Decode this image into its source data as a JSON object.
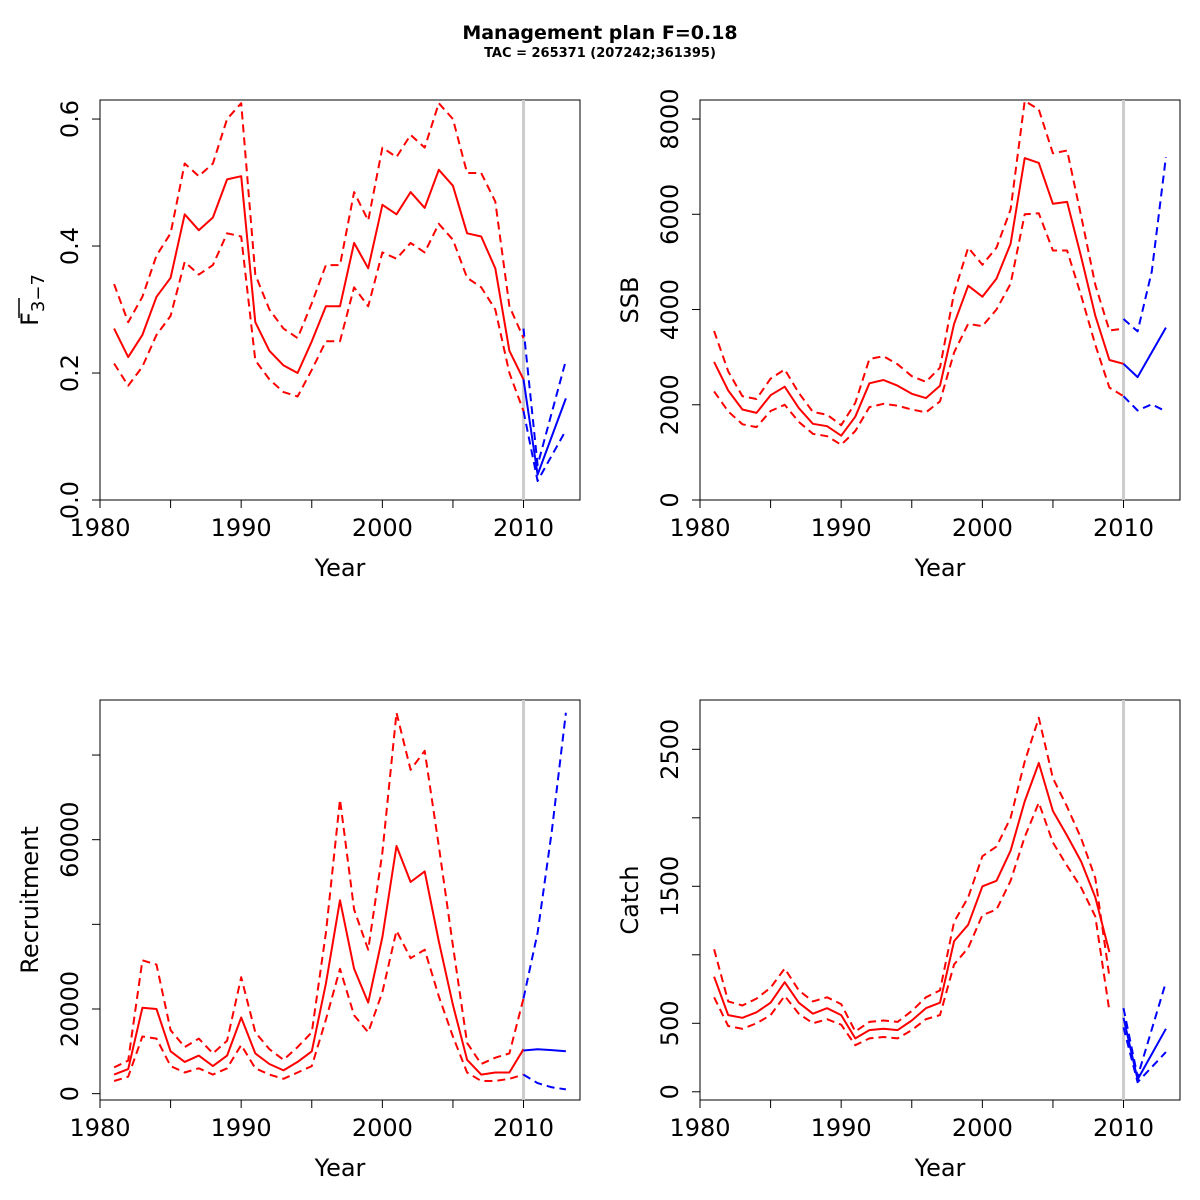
{
  "title": "Management plan F=0.18",
  "subtitle": "TAC = 265371 (207242;361395)",
  "colors": {
    "historic": "#ff0000",
    "forecast": "#0000ff",
    "vline": "#cccccc"
  },
  "chart_data": [
    {
      "type": "line",
      "ylabel_main": "F",
      "ylabel_sub": "3−7",
      "xlabel": "Year",
      "xlim": [
        1980,
        2014
      ],
      "ylim": [
        0,
        0.63
      ],
      "xticks": [
        1980,
        1990,
        2000,
        2010
      ],
      "yticks": [
        0.0,
        0.2,
        0.4,
        0.6
      ],
      "ytick_labels": [
        "0.0",
        "0.2",
        "0.4",
        "0.6"
      ],
      "vline_x": 2010,
      "series": [
        {
          "style": "historic-solid",
          "x": [
            1981,
            1982,
            1983,
            1984,
            1985,
            1986,
            1987,
            1988,
            1989,
            1990,
            1991,
            1992,
            1993,
            1994,
            1995,
            1996,
            1997,
            1998,
            1999,
            2000,
            2001,
            2002,
            2003,
            2004,
            2005,
            2006,
            2007,
            2008,
            2009,
            2010
          ],
          "y": [
            0.27,
            0.225,
            0.26,
            0.32,
            0.35,
            0.45,
            0.425,
            0.445,
            0.505,
            0.51,
            0.28,
            0.235,
            0.212,
            0.2,
            0.25,
            0.305,
            0.305,
            0.405,
            0.365,
            0.465,
            0.45,
            0.485,
            0.46,
            0.52,
            0.495,
            0.42,
            0.415,
            0.365,
            0.235,
            0.19
          ]
        },
        {
          "style": "historic-dash",
          "x": [
            1981,
            1982,
            1983,
            1984,
            1985,
            1986,
            1987,
            1988,
            1989,
            1990,
            1991,
            1992,
            1993,
            1994,
            1995,
            1996,
            1997,
            1998,
            1999,
            2000,
            2001,
            2002,
            2003,
            2004,
            2005,
            2006,
            2007,
            2008,
            2009,
            2010
          ],
          "y": [
            0.34,
            0.28,
            0.32,
            0.385,
            0.42,
            0.53,
            0.51,
            0.53,
            0.6,
            0.625,
            0.355,
            0.3,
            0.27,
            0.255,
            0.31,
            0.37,
            0.37,
            0.485,
            0.44,
            0.555,
            0.54,
            0.575,
            0.555,
            0.625,
            0.6,
            0.515,
            0.515,
            0.47,
            0.305,
            0.255
          ]
        },
        {
          "style": "historic-dash",
          "x": [
            1981,
            1982,
            1983,
            1984,
            1985,
            1986,
            1987,
            1988,
            1989,
            1990,
            1991,
            1992,
            1993,
            1994,
            1995,
            1996,
            1997,
            1998,
            1999,
            2000,
            2001,
            2002,
            2003,
            2004,
            2005,
            2006,
            2007,
            2008,
            2009,
            2010
          ],
          "y": [
            0.215,
            0.18,
            0.21,
            0.26,
            0.29,
            0.375,
            0.355,
            0.37,
            0.42,
            0.415,
            0.22,
            0.19,
            0.17,
            0.163,
            0.205,
            0.25,
            0.25,
            0.335,
            0.305,
            0.39,
            0.38,
            0.405,
            0.39,
            0.435,
            0.41,
            0.35,
            0.335,
            0.3,
            0.2,
            0.14
          ]
        },
        {
          "style": "forecast-solid",
          "x": [
            2010,
            2011,
            2013
          ],
          "y": [
            0.19,
            0.04,
            0.16
          ]
        },
        {
          "style": "forecast-dash",
          "x": [
            2010,
            2011,
            2013
          ],
          "y": [
            0.27,
            0.055,
            0.22
          ]
        },
        {
          "style": "forecast-dash",
          "x": [
            2010,
            2011,
            2013
          ],
          "y": [
            0.14,
            0.03,
            0.11
          ]
        }
      ]
    },
    {
      "type": "line",
      "ylabel_main": "SSB",
      "xlabel": "Year",
      "xlim": [
        1980,
        2014
      ],
      "ylim": [
        0,
        8400
      ],
      "xticks": [
        1980,
        1990,
        2000,
        2010
      ],
      "yticks": [
        0,
        2000,
        4000,
        6000,
        8000
      ],
      "ytick_labels": [
        "0",
        "2000",
        "4000",
        "6000",
        "8000"
      ],
      "vline_x": 2010,
      "series": [
        {
          "style": "historic-solid",
          "x": [
            1981,
            1982,
            1983,
            1984,
            1985,
            1986,
            1987,
            1988,
            1989,
            1990,
            1991,
            1992,
            1993,
            1994,
            1995,
            1996,
            1997,
            1998,
            1999,
            2000,
            2001,
            2002,
            2003,
            2004,
            2005,
            2006,
            2007,
            2008,
            2009,
            2010
          ],
          "y": [
            2900,
            2300,
            1900,
            1830,
            2200,
            2380,
            1930,
            1600,
            1550,
            1350,
            1750,
            2450,
            2520,
            2400,
            2230,
            2140,
            2400,
            3700,
            4500,
            4270,
            4650,
            5380,
            7180,
            7080,
            6220,
            6260,
            5100,
            3870,
            2940,
            2860
          ]
        },
        {
          "style": "historic-dash",
          "x": [
            1981,
            1982,
            1983,
            1984,
            1985,
            1986,
            1987,
            1988,
            1989,
            1990,
            1991,
            1992,
            1993,
            1994,
            1995,
            1996,
            1997,
            1998,
            1999,
            2000,
            2001,
            2002,
            2003,
            2004,
            2005,
            2006,
            2007,
            2008,
            2009,
            2010
          ],
          "y": [
            3550,
            2700,
            2180,
            2120,
            2550,
            2740,
            2250,
            1850,
            1790,
            1570,
            2040,
            2960,
            3020,
            2850,
            2600,
            2480,
            2780,
            4350,
            5300,
            4940,
            5300,
            6100,
            8380,
            8200,
            7280,
            7340,
            5960,
            4520,
            3560,
            3600
          ]
        },
        {
          "style": "historic-dash",
          "x": [
            1981,
            1982,
            1983,
            1984,
            1985,
            1986,
            1987,
            1988,
            1989,
            1990,
            1991,
            1992,
            1993,
            1994,
            1995,
            1996,
            1997,
            1998,
            1999,
            2000,
            2001,
            2002,
            2003,
            2004,
            2005,
            2006,
            2007,
            2008,
            2009,
            2010
          ],
          "y": [
            2280,
            1860,
            1590,
            1530,
            1870,
            2000,
            1640,
            1390,
            1340,
            1160,
            1450,
            1950,
            2020,
            1980,
            1900,
            1840,
            2070,
            3100,
            3700,
            3650,
            4000,
            4540,
            6000,
            6020,
            5240,
            5240,
            4290,
            3260,
            2360,
            2180
          ]
        },
        {
          "style": "forecast-solid",
          "x": [
            2010,
            2011,
            2013
          ],
          "y": [
            2860,
            2580,
            3620
          ]
        },
        {
          "style": "forecast-dash",
          "x": [
            2010,
            2011,
            2012,
            2013
          ],
          "y": [
            3800,
            3540,
            4800,
            7200
          ]
        },
        {
          "style": "forecast-dash",
          "x": [
            2010,
            2011,
            2012,
            2013
          ],
          "y": [
            2180,
            1880,
            2010,
            1860
          ]
        }
      ]
    },
    {
      "type": "line",
      "ylabel_main": "Recruitment",
      "xlabel": "Year",
      "xlim": [
        1980,
        2014
      ],
      "ylim": [
        -1500,
        93000
      ],
      "xticks": [
        1980,
        1990,
        2000,
        2010
      ],
      "yticks": [
        0,
        20000,
        40000,
        60000,
        80000
      ],
      "ytick_labels": [
        "0",
        "20000",
        "",
        "60000",
        ""
      ],
      "vline_x": 2010,
      "series": [
        {
          "style": "historic-solid",
          "x": [
            1981,
            1982,
            1983,
            1984,
            1985,
            1986,
            1987,
            1988,
            1989,
            1990,
            1991,
            1992,
            1993,
            1994,
            1995,
            1996,
            1997,
            1998,
            1999,
            2000,
            2001,
            2002,
            2003,
            2004,
            2005,
            2006,
            2007,
            2008,
            2009,
            2010
          ],
          "y": [
            4500,
            5800,
            20300,
            20000,
            10000,
            7500,
            9000,
            6500,
            9000,
            18000,
            9500,
            7000,
            5500,
            7500,
            10000,
            26000,
            45700,
            29500,
            21500,
            37000,
            58500,
            50000,
            52500,
            36000,
            21000,
            8000,
            4500,
            5000,
            5000,
            10500
          ]
        },
        {
          "style": "historic-dash",
          "x": [
            1981,
            1982,
            1983,
            1984,
            1985,
            1986,
            1987,
            1988,
            1989,
            1990,
            1991,
            1992,
            1993,
            1994,
            1995,
            1996,
            1997,
            1998,
            1999,
            2000,
            2001,
            2002,
            2003,
            2004,
            2005,
            2006,
            2007,
            2008,
            2009,
            2010
          ],
          "y": [
            6200,
            7800,
            31500,
            30500,
            15000,
            11000,
            13000,
            9500,
            12500,
            27500,
            14500,
            10500,
            8000,
            11000,
            14500,
            38000,
            69500,
            43500,
            34000,
            57000,
            90000,
            76500,
            81000,
            58500,
            35000,
            12000,
            7000,
            8500,
            9500,
            22500
          ]
        },
        {
          "style": "historic-dash",
          "x": [
            1981,
            1982,
            1983,
            1984,
            1985,
            1986,
            1987,
            1988,
            1989,
            1990,
            1991,
            1992,
            1993,
            1994,
            1995,
            1996,
            1997,
            1998,
            1999,
            2000,
            2001,
            2002,
            2003,
            2004,
            2005,
            2006,
            2007,
            2008,
            2009,
            2010
          ],
          "y": [
            3000,
            4000,
            13500,
            13000,
            6500,
            5000,
            6000,
            4500,
            6000,
            11500,
            6000,
            4500,
            3500,
            5000,
            6500,
            17500,
            29500,
            18500,
            14500,
            24000,
            38500,
            32000,
            34000,
            23000,
            13500,
            5000,
            3000,
            3000,
            3500,
            4500
          ]
        },
        {
          "style": "forecast-solid",
          "x": [
            2010,
            2011,
            2012,
            2013
          ],
          "y": [
            10200,
            10500,
            10300,
            10000
          ]
        },
        {
          "style": "forecast-dash",
          "x": [
            2010,
            2011,
            2012,
            2013
          ],
          "y": [
            22500,
            38000,
            62000,
            90000
          ]
        },
        {
          "style": "forecast-dash",
          "x": [
            2010,
            2011,
            2012,
            2013
          ],
          "y": [
            4500,
            2500,
            1500,
            1000
          ]
        }
      ]
    },
    {
      "type": "line",
      "ylabel_main": "Catch",
      "xlabel": "Year",
      "xlim": [
        1980,
        2014
      ],
      "ylim": [
        -60,
        2860
      ],
      "xticks": [
        1980,
        1990,
        2000,
        2010
      ],
      "yticks": [
        0,
        500,
        1000,
        1500,
        2000,
        2500
      ],
      "ytick_labels": [
        "0",
        "500",
        "",
        "1500",
        "",
        "2500"
      ],
      "vline_x": 2010,
      "series": [
        {
          "style": "historic-solid",
          "x": [
            1981,
            1982,
            1983,
            1984,
            1985,
            1986,
            1987,
            1988,
            1989,
            1990,
            1991,
            1992,
            1993,
            1994,
            1995,
            1996,
            1997,
            1998,
            1999,
            2000,
            2001,
            2002,
            2003,
            2004,
            2005,
            2006,
            2007,
            2008,
            2009
          ],
          "y": [
            840,
            560,
            540,
            580,
            650,
            800,
            650,
            570,
            610,
            560,
            390,
            450,
            460,
            450,
            520,
            610,
            650,
            1100,
            1220,
            1500,
            1540,
            1760,
            2120,
            2400,
            2050,
            1870,
            1680,
            1420,
            1020
          ]
        },
        {
          "style": "historic-dash",
          "x": [
            1981,
            1982,
            1983,
            1984,
            1985,
            1986,
            1987,
            1988,
            1989,
            1990,
            1991,
            1992,
            1993,
            1994,
            1995,
            1996,
            1997,
            1998,
            1999,
            2000,
            2001,
            2002,
            2003,
            2004,
            2005,
            2006,
            2007,
            2008,
            2009
          ],
          "y": [
            1040,
            660,
            630,
            680,
            760,
            900,
            740,
            660,
            690,
            640,
            440,
            510,
            520,
            510,
            590,
            690,
            740,
            1240,
            1420,
            1720,
            1790,
            2000,
            2410,
            2730,
            2290,
            2080,
            1850,
            1560,
            840
          ]
        },
        {
          "style": "historic-dash",
          "x": [
            1981,
            1982,
            1983,
            1984,
            1985,
            1986,
            1987,
            1988,
            1989,
            1990,
            1991,
            1992,
            1993,
            1994,
            1995,
            1996,
            1997,
            1998,
            1999,
            2000,
            2001,
            2002,
            2003,
            2004,
            2005,
            2006,
            2007,
            2008,
            2009
          ],
          "y": [
            690,
            480,
            460,
            500,
            560,
            700,
            570,
            500,
            530,
            490,
            340,
            390,
            400,
            390,
            450,
            530,
            560,
            930,
            1050,
            1290,
            1330,
            1540,
            1860,
            2110,
            1820,
            1650,
            1490,
            1280,
            590
          ]
        },
        {
          "style": "forecast-solid",
          "x": [
            2010,
            2011,
            2013
          ],
          "y": [
            540,
            90,
            460
          ]
        },
        {
          "style": "forecast-dash",
          "x": [
            2010,
            2011,
            2013
          ],
          "y": [
            610,
            110,
            800
          ]
        },
        {
          "style": "forecast-dash",
          "x": [
            2010,
            2011,
            2013
          ],
          "y": [
            470,
            70,
            290
          ]
        }
      ]
    }
  ]
}
